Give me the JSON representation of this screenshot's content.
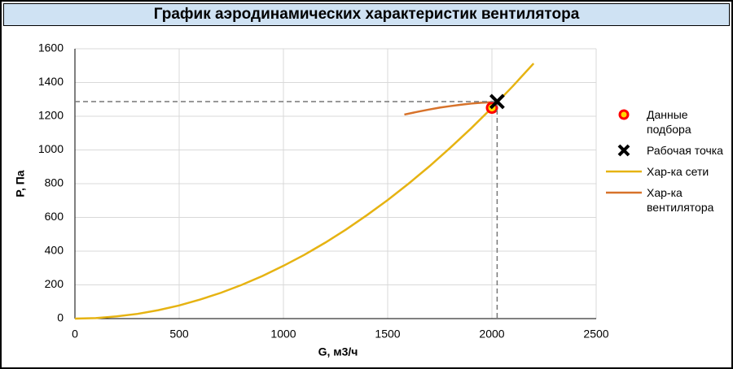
{
  "chart_data": {
    "type": "line",
    "title": "График аэродинамических характеристик вентилятора",
    "x_label": "G, м3/ч",
    "y_label": "P, Па",
    "xlim": [
      0,
      2500
    ],
    "xticks": [
      0,
      500,
      1000,
      1500,
      2000,
      2500
    ],
    "ylim": [
      0,
      1600
    ],
    "yticks": [
      0,
      200,
      400,
      600,
      800,
      1000,
      1200,
      1400,
      1600
    ],
    "grid": true,
    "series": [
      {
        "name": "Данные подбора",
        "marker": "circle",
        "color": "#ff0000",
        "fill": "#ffd700",
        "x": [
          2000
        ],
        "values": [
          1250
        ]
      },
      {
        "name": "Рабочая точка",
        "marker": "cross",
        "color": "#000000",
        "x": [
          2025
        ],
        "values": [
          1287
        ],
        "guides": true
      },
      {
        "name": "Хар-ка сети",
        "marker": "line",
        "color": "#e6b312",
        "x": [
          0,
          100,
          200,
          300,
          400,
          500,
          600,
          700,
          800,
          900,
          1000,
          1100,
          1200,
          1300,
          1400,
          1500,
          1600,
          1700,
          1800,
          1900,
          2000,
          2100,
          2200
        ],
        "values": [
          0,
          3,
          13,
          28,
          50,
          78,
          113,
          153,
          200,
          253,
          313,
          378,
          450,
          528,
          613,
          703,
          800,
          903,
          1013,
          1128,
          1250,
          1378,
          1513
        ]
      },
      {
        "name": "Хар-ка вентилятора",
        "marker": "line",
        "color": "#d7722a",
        "x": [
          1580,
          1650,
          1700,
          1750,
          1800,
          1850,
          1900,
          1950,
          2000
        ],
        "values": [
          1210,
          1228,
          1240,
          1251,
          1260,
          1268,
          1275,
          1280,
          1283
        ]
      }
    ]
  }
}
